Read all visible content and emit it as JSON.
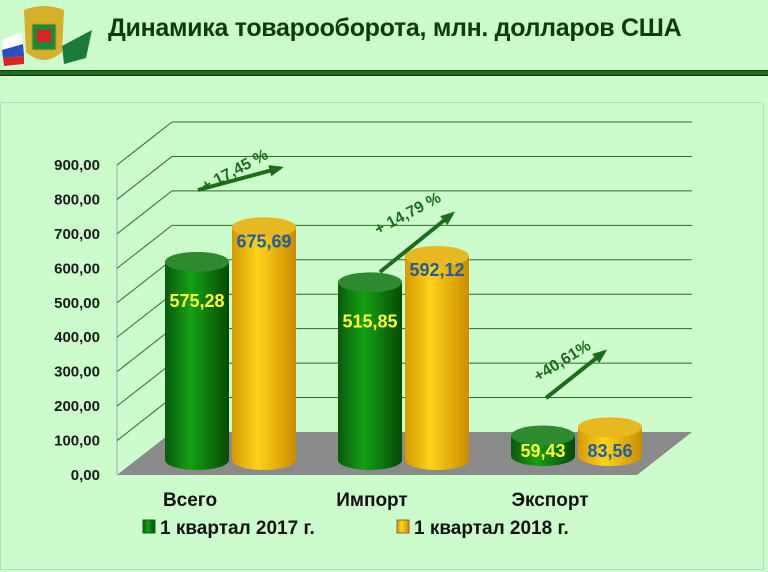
{
  "header": {
    "title": "Динамика товарооборота, млн. долларов США"
  },
  "chart_data": {
    "type": "bar",
    "title": "",
    "categories": [
      "Всего",
      "Импорт",
      "Экспорт"
    ],
    "series": [
      {
        "name": "1 квартал 2017 г.",
        "values": [
          575.28,
          515.85,
          59.43
        ],
        "labels": [
          "575,28",
          "515,85",
          "59,43"
        ],
        "color": "#0a8a0a",
        "label_color": "#ffff33"
      },
      {
        "name": "1 квартал 2018 г.",
        "values": [
          675.69,
          592.12,
          83.56
        ],
        "labels": [
          "675,69",
          "592,12",
          "83,56"
        ],
        "color": "#f5c000",
        "label_color": "#1f5f9f"
      }
    ],
    "yticks": [
      "0,00",
      "100,00",
      "200,00",
      "300,00",
      "400,00",
      "500,00",
      "600,00",
      "700,00",
      "800,00",
      "900,00"
    ],
    "ylim": [
      0,
      900
    ],
    "grid": true,
    "legend": "bottom",
    "annotations": [
      "+ 17,45 %",
      "+ 14,79 %",
      "+40,61%"
    ]
  }
}
